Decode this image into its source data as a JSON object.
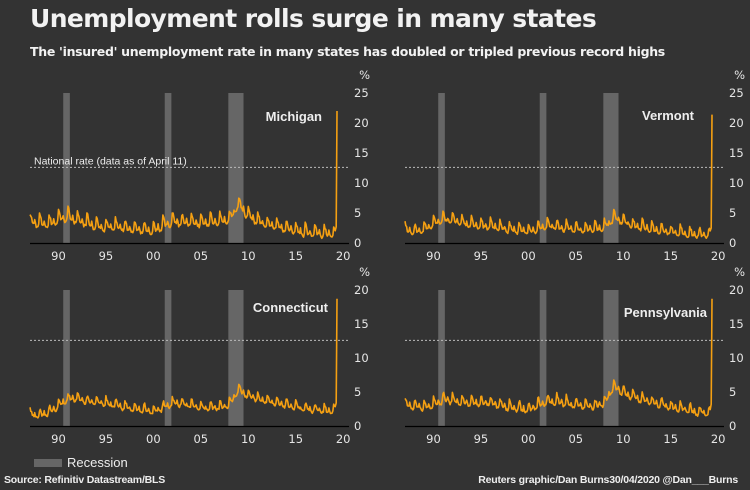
{
  "header": {
    "title": "Unemployment rolls surge in many states",
    "subtitle": "The 'insured' unemployment rate in many states has doubled or tripled previous record highs"
  },
  "legend": {
    "recession_label": "Recession",
    "recession_color": "#666666"
  },
  "footer": {
    "source": "Source: Refinitiv Datastream/BLS",
    "credit": "Reuters graphic/Dan Burns30/04/2020 @Dan___Burns"
  },
  "colors": {
    "line": "#f5a012",
    "background": "#333333",
    "recession": "#666666",
    "national_line": "#bbbbbb"
  },
  "chart_data": [
    {
      "type": "line",
      "title": "Michigan",
      "ylabel": "%",
      "ylim": [
        0,
        25
      ],
      "yticks": [
        0,
        5,
        10,
        15,
        20,
        25
      ],
      "xticks": [
        "90",
        "95",
        "00",
        "05",
        "10",
        "15",
        "20"
      ],
      "xlim": [
        1987,
        2020.3
      ],
      "national_rate": 12.6,
      "national_rate_label": "National rate (data as of April 11)",
      "recessions": [
        [
          1990.5,
          1991.2
        ],
        [
          2001.2,
          2001.9
        ],
        [
          2007.9,
          2009.5
        ]
      ],
      "annual_base": [
        3.6,
        3.3,
        3.2,
        4.0,
        4.4,
        3.8,
        3.3,
        2.8,
        2.7,
        2.8,
        2.6,
        2.3,
        2.2,
        2.1,
        3.0,
        3.6,
        3.6,
        3.5,
        3.4,
        3.5,
        3.6,
        4.0,
        6.5,
        4.6,
        3.7,
        3.1,
        2.8,
        2.5,
        2.1,
        1.8,
        1.7,
        1.6,
        1.5
      ],
      "seasonal_amp": 1.4,
      "last_value": 22.0
    },
    {
      "type": "line",
      "title": "Vermont",
      "ylabel": "%",
      "ylim": [
        0,
        25
      ],
      "yticks": [
        0,
        5,
        10,
        15,
        20,
        25
      ],
      "xticks": [
        "90",
        "95",
        "00",
        "05",
        "10",
        "15",
        "20"
      ],
      "xlim": [
        1987,
        2020.3
      ],
      "national_rate": 12.6,
      "recessions": [
        [
          1990.5,
          1991.2
        ],
        [
          2001.2,
          2001.9
        ],
        [
          2007.9,
          2009.5
        ]
      ],
      "annual_base": [
        2.2,
        2.0,
        2.3,
        3.2,
        4.0,
        3.9,
        3.4,
        3.1,
        2.9,
        2.8,
        2.6,
        2.3,
        2.1,
        2.0,
        2.4,
        2.9,
        2.7,
        2.5,
        2.3,
        2.3,
        2.4,
        2.6,
        4.2,
        3.6,
        3.0,
        2.6,
        2.3,
        2.1,
        1.9,
        1.7,
        1.5,
        1.4,
        1.3
      ],
      "seasonal_amp": 1.2,
      "last_value": 21.4
    },
    {
      "type": "line",
      "title": "Connecticut",
      "ylabel": "%",
      "ylim": [
        0,
        20
      ],
      "yticks": [
        0,
        5,
        10,
        15,
        20
      ],
      "xticks": [
        "90",
        "95",
        "00",
        "05",
        "10",
        "15",
        "20"
      ],
      "xlim": [
        1987,
        2020.3
      ],
      "national_rate": 12.6,
      "recessions": [
        [
          1990.5,
          1991.2
        ],
        [
          2001.2,
          2001.9
        ],
        [
          2007.9,
          2009.5
        ]
      ],
      "annual_base": [
        1.7,
        1.6,
        2.0,
        2.9,
        4.0,
        4.0,
        3.7,
        3.5,
        3.3,
        3.1,
        2.8,
        2.5,
        2.4,
        2.1,
        2.7,
        3.4,
        3.3,
        3.0,
        2.8,
        2.7,
        2.8,
        3.2,
        5.3,
        4.5,
        4.0,
        3.7,
        3.4,
        3.1,
        2.8,
        2.6,
        2.4,
        2.3,
        2.2
      ],
      "seasonal_amp": 0.9,
      "last_value": 18.7
    },
    {
      "type": "line",
      "title": "Pennsylvania",
      "ylabel": "%",
      "ylim": [
        0,
        20
      ],
      "yticks": [
        0,
        5,
        10,
        15,
        20
      ],
      "xticks": [
        "90",
        "95",
        "00",
        "05",
        "10",
        "15",
        "20"
      ],
      "xlim": [
        1987,
        2020.3
      ],
      "national_rate": 12.6,
      "recessions": [
        [
          1990.5,
          1991.2
        ],
        [
          2001.2,
          2001.9
        ],
        [
          2007.9,
          2009.5
        ]
      ],
      "annual_base": [
        3.2,
        2.8,
        2.8,
        3.1,
        3.9,
        3.8,
        3.6,
        3.4,
        3.4,
        3.5,
        3.1,
        2.8,
        2.6,
        2.4,
        3.1,
        3.7,
        3.6,
        3.4,
        3.1,
        3.0,
        3.0,
        3.3,
        5.8,
        5.0,
        4.3,
        3.9,
        3.6,
        3.2,
        2.8,
        2.6,
        2.3,
        2.1,
        2.0
      ],
      "seasonal_amp": 1.0,
      "last_value": 18.7
    }
  ]
}
